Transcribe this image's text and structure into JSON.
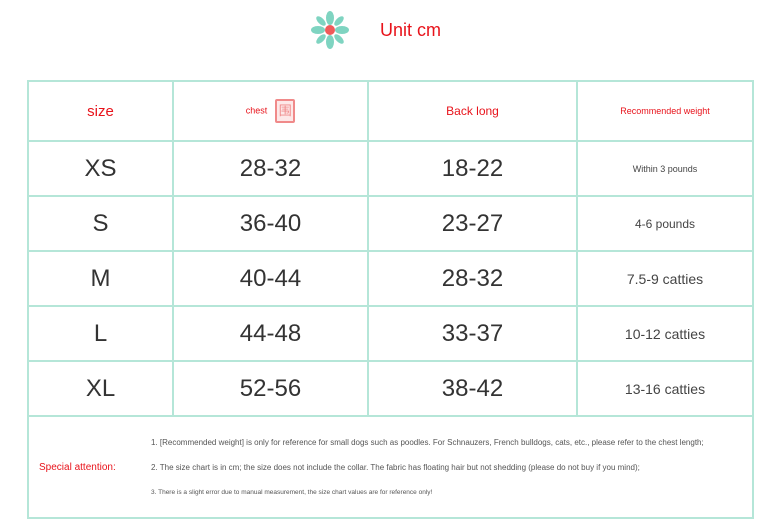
{
  "header": {
    "unit": "Unit cm",
    "icon": "flower-icon"
  },
  "table": {
    "headers": [
      "size",
      "chest",
      "Back long",
      "Recommended weight"
    ],
    "chest_icon": "围",
    "rows": [
      [
        "XS",
        "28-32",
        "18-22",
        "Within 3 pounds"
      ],
      [
        "S",
        "36-40",
        "23-27",
        "4-6 pounds"
      ],
      [
        "M",
        "40-44",
        "28-32",
        "7.5-9 catties"
      ],
      [
        "L",
        "44-48",
        "33-37",
        "10-12 catties"
      ],
      [
        "XL",
        "52-56",
        "38-42",
        "13-16 catties"
      ]
    ]
  },
  "notes": {
    "label": "Special attention:",
    "items": [
      "1. [Recommended weight] is only for reference for small dogs such as poodles. For Schnauzers, French bulldogs, cats, etc., please refer to the chest length;",
      "2. The size chart is in cm; the size does not include the collar. The fabric has floating hair but not shedding (please do not buy if you mind);",
      "3. There is a slight error due to manual measurement, the size chart values are for reference only!"
    ]
  },
  "colors": {
    "accent": "#e8131b",
    "border": "#b5e6d8",
    "flower": "#7fd4c1"
  }
}
